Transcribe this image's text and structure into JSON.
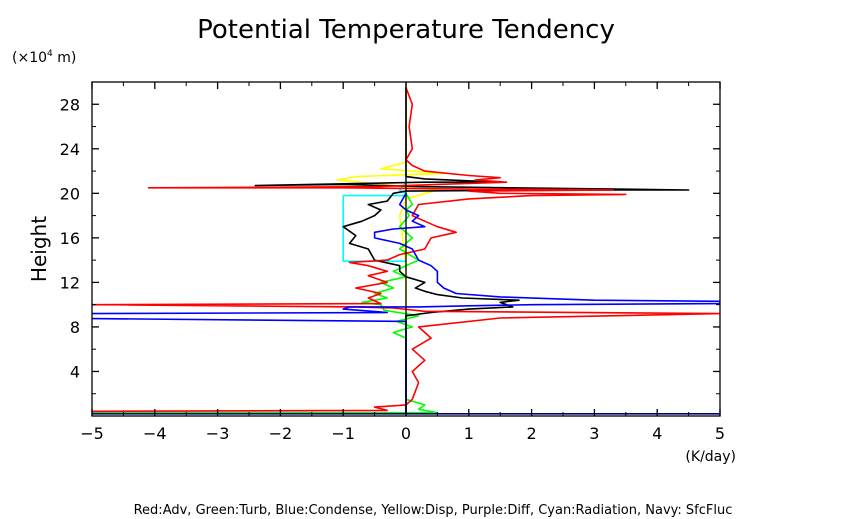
{
  "chart_data": {
    "type": "line",
    "title": "Potential Temperature Tendency",
    "xlabel": "(K/day)",
    "ylabel": "Height",
    "y_unit_prefix": "(×10",
    "y_unit_exp": "4",
    "y_unit_suffix": " m)",
    "xlim": [
      -5,
      5
    ],
    "ylim": [
      0,
      30
    ],
    "x_ticks": [
      -5,
      -4,
      -3,
      -2,
      -1,
      0,
      1,
      2,
      3,
      4,
      5
    ],
    "y_ticks": [
      4,
      8,
      12,
      16,
      20,
      24,
      28
    ],
    "grid": false,
    "legend_text": "Red:Adv, Green:Turb, Blue:Condense, Yellow:Disp, Purple:Diff, Cyan:Radiation, Navy: SfcFluc",
    "series": [
      {
        "name": "Yellow:Disp",
        "color": "#ffff00",
        "points": [
          [
            0,
            0.2
          ],
          [
            0,
            13.5
          ],
          [
            -0.1,
            18
          ],
          [
            0,
            19.5
          ],
          [
            0.5,
            20.3
          ],
          [
            -1.1,
            21.2
          ],
          [
            -0.8,
            21.5
          ],
          [
            0.6,
            21.8
          ],
          [
            -0.4,
            22.2
          ],
          [
            0,
            22.8
          ],
          [
            0,
            29.5
          ]
        ]
      },
      {
        "name": "Green:Turb",
        "color": "#00ff00",
        "points": [
          [
            -6,
            0.3
          ],
          [
            0.5,
            0.3
          ],
          [
            0.2,
            0.6
          ],
          [
            0.3,
            1
          ],
          [
            0,
            1.5
          ],
          [
            0,
            7
          ],
          [
            -0.2,
            7.5
          ],
          [
            0.1,
            8
          ],
          [
            -0.15,
            8.5
          ],
          [
            0.2,
            9
          ],
          [
            -0.35,
            9.5
          ],
          [
            -0.4,
            10
          ],
          [
            -0.7,
            10.2
          ],
          [
            -0.3,
            10.6
          ],
          [
            -0.5,
            11
          ],
          [
            -0.2,
            11.5
          ],
          [
            -0.4,
            12
          ],
          [
            0,
            12.5
          ],
          [
            -0.2,
            13
          ],
          [
            0,
            13.5
          ],
          [
            0.2,
            14
          ],
          [
            -0.1,
            15
          ],
          [
            0.1,
            16
          ],
          [
            -0.1,
            17
          ],
          [
            0.05,
            18
          ],
          [
            0,
            18.5
          ],
          [
            0.1,
            19
          ],
          [
            0,
            20
          ]
        ]
      },
      {
        "name": "Cyan:Radiation",
        "color": "#00ffff",
        "points": [
          [
            0,
            13.9
          ],
          [
            -1,
            13.9
          ],
          [
            -1,
            19.8
          ],
          [
            0,
            19.8
          ],
          [
            0,
            20
          ],
          [
            -0.1,
            20.3
          ],
          [
            0,
            21
          ],
          [
            0,
            22
          ]
        ]
      },
      {
        "name": "Black",
        "color": "#000000",
        "points": [
          [
            0,
            0.3
          ],
          [
            0,
            9
          ],
          [
            0.4,
            9.3
          ],
          [
            1,
            9.6
          ],
          [
            1.7,
            9.8
          ],
          [
            1.5,
            10.2
          ],
          [
            1.8,
            10.4
          ],
          [
            0.9,
            10.6
          ],
          [
            0.5,
            10.9
          ],
          [
            0.3,
            11.2
          ],
          [
            0.15,
            11.5
          ],
          [
            0.3,
            12
          ],
          [
            0,
            12.5
          ],
          [
            -0.1,
            13
          ],
          [
            -0.1,
            13.5
          ],
          [
            -0.5,
            14
          ],
          [
            -0.6,
            15
          ],
          [
            -0.9,
            15.5
          ],
          [
            -0.8,
            16.2
          ],
          [
            -1,
            17
          ],
          [
            -0.7,
            17.5
          ],
          [
            -0.5,
            18
          ],
          [
            -0.4,
            18.5
          ],
          [
            -0.6,
            19
          ],
          [
            -0.3,
            19.3
          ],
          [
            -0.2,
            20
          ],
          [
            0,
            20.2
          ],
          [
            2.5,
            20.3
          ],
          [
            4.5,
            20.3
          ],
          [
            0.3,
            20.6
          ],
          [
            -1,
            20.8
          ],
          [
            -2.4,
            20.7
          ],
          [
            0.3,
            21
          ],
          [
            1.5,
            21
          ],
          [
            0.3,
            21.3
          ],
          [
            0,
            21.5
          ],
          [
            0,
            29.5
          ]
        ]
      },
      {
        "name": "Red:Adv",
        "color": "#ff0000",
        "points": [
          [
            -6,
            0.4
          ],
          [
            -0.3,
            0.5
          ],
          [
            -0.5,
            0.8
          ],
          [
            0,
            1
          ],
          [
            0.1,
            1.5
          ],
          [
            0.2,
            3
          ],
          [
            0.1,
            4
          ],
          [
            0.3,
            5
          ],
          [
            0.1,
            6
          ],
          [
            0.4,
            7
          ],
          [
            0.2,
            8
          ],
          [
            1.5,
            8.8
          ],
          [
            5,
            9.2
          ],
          [
            0.3,
            9.4
          ],
          [
            -0.2,
            9.7
          ],
          [
            -0.8,
            9.8
          ],
          [
            -5,
            10
          ],
          [
            -0.4,
            10.1
          ],
          [
            -0.6,
            10.6
          ],
          [
            -0.4,
            11
          ],
          [
            -0.8,
            11.5
          ],
          [
            -0.3,
            12
          ],
          [
            -0.6,
            12.6
          ],
          [
            -0.3,
            13
          ],
          [
            -0.6,
            13.5
          ],
          [
            -0.9,
            13.8
          ],
          [
            -0.3,
            14
          ],
          [
            -0.1,
            14.5
          ],
          [
            0.3,
            15
          ],
          [
            0.4,
            16
          ],
          [
            0.8,
            16.5
          ],
          [
            0.5,
            17
          ],
          [
            0.3,
            17.5
          ],
          [
            0.1,
            18
          ],
          [
            0.2,
            19
          ],
          [
            1,
            19.5
          ],
          [
            2,
            19.8
          ],
          [
            3.5,
            19.9
          ],
          [
            1.5,
            20
          ],
          [
            1,
            20.2
          ],
          [
            3.3,
            20.3
          ],
          [
            0.7,
            20.4
          ],
          [
            -1,
            20.5
          ],
          [
            -4.1,
            20.5
          ],
          [
            -0.5,
            20.6
          ],
          [
            0.5,
            20.8
          ],
          [
            1.6,
            21
          ],
          [
            1.1,
            21.2
          ],
          [
            1.5,
            21.4
          ],
          [
            1,
            21.6
          ],
          [
            0.3,
            22
          ],
          [
            0.1,
            22.5
          ],
          [
            0,
            23
          ],
          [
            0.1,
            24
          ],
          [
            0.05,
            26
          ],
          [
            0.1,
            28
          ],
          [
            0,
            29.5
          ]
        ]
      },
      {
        "name": "Blue:Condense",
        "color": "#0000ff",
        "points": [
          [
            0,
            0.3
          ],
          [
            0,
            8.5
          ],
          [
            -6,
            8.8
          ],
          [
            -5,
            9.2
          ],
          [
            -0.3,
            9.3
          ],
          [
            -1,
            9.6
          ],
          [
            -0.9,
            9.8
          ],
          [
            0.2,
            9.8
          ],
          [
            1,
            9.9
          ],
          [
            2,
            10
          ],
          [
            5,
            10.1
          ],
          [
            5,
            10.3
          ],
          [
            3,
            10.4
          ],
          [
            1.5,
            10.7
          ],
          [
            0.8,
            11
          ],
          [
            0.6,
            11.5
          ],
          [
            0.5,
            12
          ],
          [
            0.5,
            13
          ],
          [
            0.4,
            13.5
          ],
          [
            0.2,
            14
          ],
          [
            0.1,
            15
          ],
          [
            -0.1,
            15.5
          ],
          [
            -0.5,
            16
          ],
          [
            -0.5,
            16.5
          ],
          [
            -0.2,
            16.8
          ],
          [
            0.3,
            17
          ],
          [
            0.1,
            17.5
          ],
          [
            0.2,
            18
          ],
          [
            0,
            18.5
          ],
          [
            -0.1,
            19
          ],
          [
            0,
            20
          ]
        ]
      },
      {
        "name": "Navy: SfcFluc",
        "color": "#000080",
        "points": [
          [
            -5,
            0.2
          ],
          [
            5,
            0.2
          ]
        ]
      }
    ]
  }
}
